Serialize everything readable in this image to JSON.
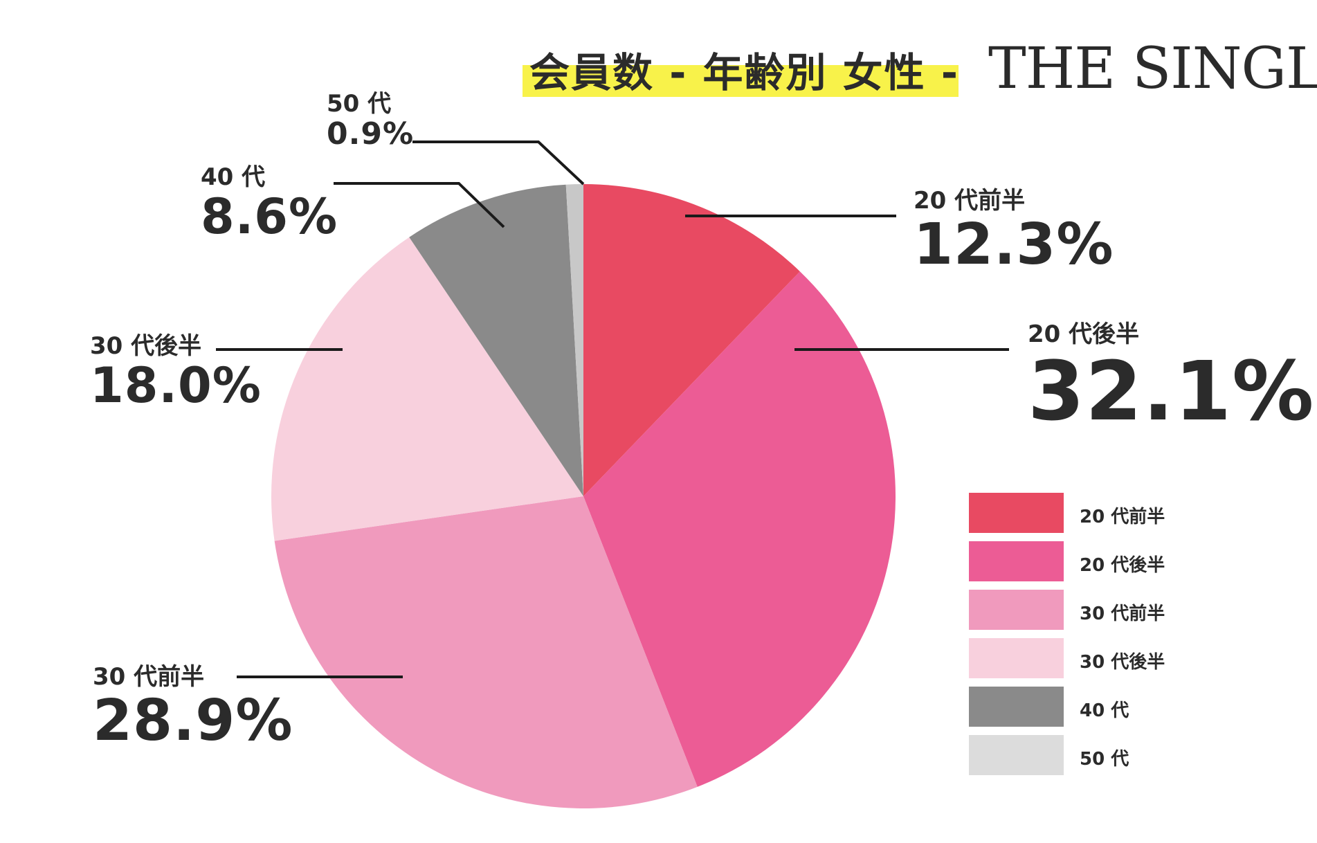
{
  "header": {
    "title": "会員数 - 年齢別 女性 -",
    "brand": "THE SINGLE",
    "highlight_color": "#f8f24a"
  },
  "chart_data": {
    "type": "pie",
    "title": "会員数 - 年齢別 女性 -",
    "slices": [
      {
        "label": "20 代前半",
        "value": 12.3,
        "display": "12.3%",
        "color": "#e84a62"
      },
      {
        "label": "20 代後半",
        "value": 32.1,
        "display": "32.1%",
        "color": "#ec5c95"
      },
      {
        "label": "30 代前半",
        "value": 28.9,
        "display": "28.9%",
        "color": "#f09abd"
      },
      {
        "label": "30 代後半",
        "value": 18.0,
        "display": "18.0%",
        "color": "#f8d0dd"
      },
      {
        "label": "40 代",
        "value": 8.6,
        "display": "8.6%",
        "color": "#8a8a8a"
      },
      {
        "label": "50 代",
        "value": 0.9,
        "display": "0.9%",
        "color": "#c8c8c8"
      }
    ],
    "legend": {
      "placement": "bottom-right",
      "entries": [
        {
          "label": "20 代前半",
          "color": "#e84a62"
        },
        {
          "label": "20 代後半",
          "color": "#ec5c95"
        },
        {
          "label": "30 代前半",
          "color": "#f09abd"
        },
        {
          "label": "30 代後半",
          "color": "#f8d0dd"
        },
        {
          "label": "40 代",
          "color": "#8a8a8a"
        },
        {
          "label": "50 代",
          "color": "#dcdcdc"
        }
      ]
    }
  }
}
